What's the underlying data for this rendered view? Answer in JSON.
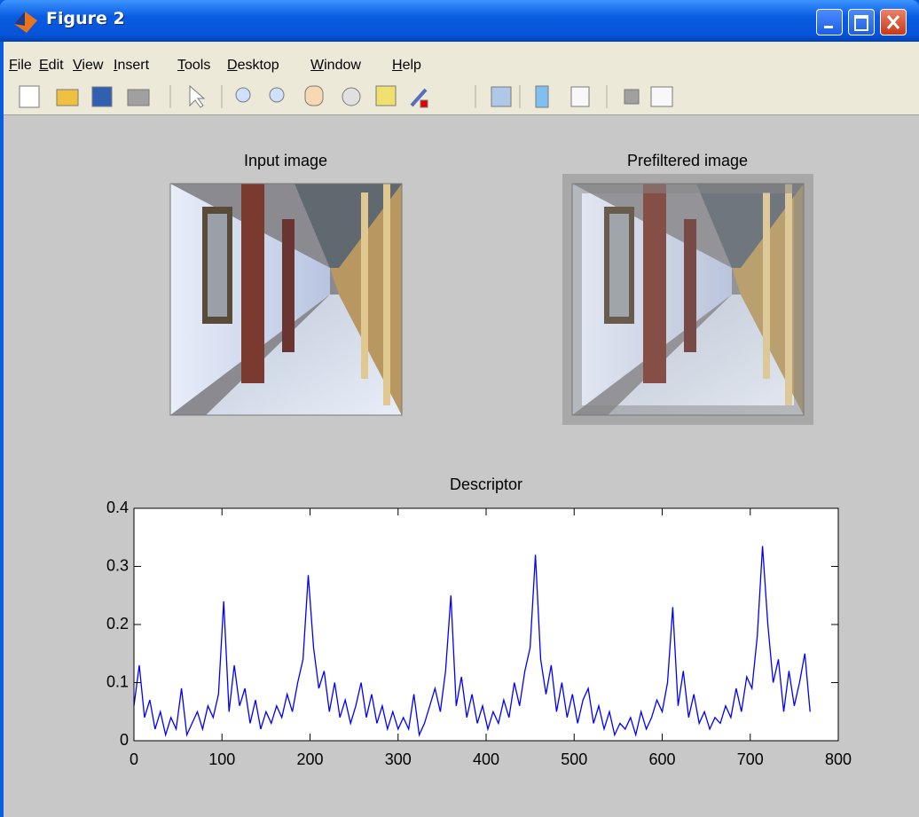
{
  "window": {
    "title": "Figure 2",
    "menu": [
      "File",
      "Edit",
      "View",
      "Insert",
      "Tools",
      "Desktop",
      "Window",
      "Help"
    ]
  },
  "panels": [
    {
      "title": "Input image"
    },
    {
      "title": "Prefiltered image"
    }
  ],
  "chart_data": {
    "type": "line",
    "title": "Descriptor",
    "xlim": [
      0,
      800
    ],
    "xticks": [
      0,
      100,
      200,
      300,
      400,
      500,
      600,
      700,
      800
    ],
    "ylim": [
      0,
      0.4
    ],
    "yticks": [
      0,
      0.1,
      0.2,
      0.3,
      0.4
    ],
    "series": [
      {
        "color": "#0000ff",
        "x": [
          0,
          6,
          12,
          18,
          24,
          30,
          36,
          42,
          48,
          54,
          60,
          66,
          72,
          78,
          84,
          90,
          96,
          102,
          108,
          114,
          120,
          126,
          132,
          138,
          144,
          150,
          156,
          162,
          168,
          174,
          180,
          186,
          192,
          198,
          204,
          210,
          216,
          222,
          228,
          234,
          240,
          246,
          252,
          258,
          264,
          270,
          276,
          282,
          288,
          294,
          300,
          306,
          312,
          318,
          324,
          330,
          336,
          342,
          348,
          354,
          360,
          366,
          372,
          378,
          384,
          390,
          396,
          402,
          408,
          414,
          420,
          426,
          432,
          438,
          444,
          450,
          456,
          462,
          468,
          474,
          480,
          486,
          492,
          498,
          504,
          510,
          516,
          522,
          528,
          534,
          540,
          546,
          552,
          558,
          564,
          570,
          576,
          582,
          588,
          594,
          600,
          606,
          612,
          618,
          624,
          630,
          636,
          642,
          648,
          654,
          660,
          666,
          672,
          678,
          684,
          690,
          696,
          702,
          708,
          714,
          720,
          726,
          732,
          738,
          744,
          750,
          756,
          762,
          768
        ],
        "values": [
          0.06,
          0.13,
          0.04,
          0.07,
          0.02,
          0.05,
          0.01,
          0.04,
          0.02,
          0.09,
          0.01,
          0.03,
          0.05,
          0.02,
          0.06,
          0.04,
          0.08,
          0.24,
          0.05,
          0.13,
          0.06,
          0.09,
          0.03,
          0.07,
          0.02,
          0.05,
          0.03,
          0.06,
          0.04,
          0.08,
          0.05,
          0.1,
          0.14,
          0.285,
          0.16,
          0.09,
          0.12,
          0.05,
          0.1,
          0.04,
          0.07,
          0.03,
          0.06,
          0.1,
          0.04,
          0.08,
          0.03,
          0.06,
          0.02,
          0.05,
          0.02,
          0.04,
          0.02,
          0.08,
          0.01,
          0.03,
          0.06,
          0.09,
          0.05,
          0.12,
          0.25,
          0.06,
          0.11,
          0.04,
          0.08,
          0.03,
          0.06,
          0.02,
          0.05,
          0.03,
          0.07,
          0.04,
          0.1,
          0.06,
          0.12,
          0.16,
          0.32,
          0.14,
          0.08,
          0.13,
          0.05,
          0.1,
          0.04,
          0.08,
          0.03,
          0.07,
          0.09,
          0.03,
          0.06,
          0.02,
          0.05,
          0.01,
          0.03,
          0.02,
          0.04,
          0.01,
          0.05,
          0.02,
          0.04,
          0.07,
          0.05,
          0.1,
          0.23,
          0.06,
          0.12,
          0.04,
          0.08,
          0.03,
          0.05,
          0.02,
          0.04,
          0.03,
          0.06,
          0.04,
          0.09,
          0.05,
          0.11,
          0.09,
          0.18,
          0.335,
          0.2,
          0.1,
          0.14,
          0.05,
          0.12,
          0.06,
          0.1,
          0.15,
          0.05
        ]
      }
    ]
  }
}
